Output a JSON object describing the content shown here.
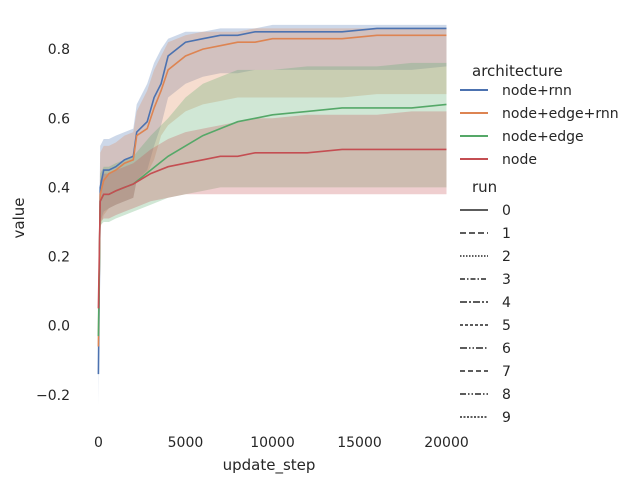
{
  "chart_data": {
    "type": "line",
    "xlabel": "update_step",
    "ylabel": "value",
    "xlim": [
      -600,
      20200
    ],
    "ylim": [
      -0.29,
      0.89
    ],
    "xticks": [
      0,
      5000,
      10000,
      15000,
      20000
    ],
    "xtick_labels": [
      "0",
      "5000",
      "10000",
      "15000",
      "20000"
    ],
    "yticks": [
      -0.2,
      0.0,
      0.2,
      0.4,
      0.6,
      0.8
    ],
    "ytick_labels": [
      "−0.2",
      "0.0",
      "0.2",
      "0.4",
      "0.6",
      "0.8"
    ],
    "grid": false,
    "legend_placement": "right, outside plot",
    "legend": {
      "hue_title": "architecture",
      "style_title": "run",
      "hue_entries": [
        {
          "label": "node+rnn",
          "color": "#4c72b0"
        },
        {
          "label": "node+edge+rnn",
          "color": "#dd8452"
        },
        {
          "label": "node+edge",
          "color": "#55a868"
        },
        {
          "label": "node",
          "color": "#c44e52"
        }
      ],
      "style_entries": [
        {
          "label": "0",
          "dash": ""
        },
        {
          "label": "1",
          "dash": "6,3"
        },
        {
          "label": "2",
          "dash": "1.5,1.5"
        },
        {
          "label": "3",
          "dash": "5,2,1.5,2"
        },
        {
          "label": "4",
          "dash": "7,2,2,2"
        },
        {
          "label": "5",
          "dash": "3,2"
        },
        {
          "label": "6",
          "dash": "7,2,1.5,2,1.5,2"
        },
        {
          "label": "7",
          "dash": "5,3"
        },
        {
          "label": "8",
          "dash": "6,2,1.5,2,1.5,2"
        },
        {
          "label": "9",
          "dash": "2,1.5"
        }
      ]
    },
    "series": [
      {
        "name": "node+rnn",
        "color": "#4c72b0",
        "x": [
          0,
          100,
          300,
          600,
          1000,
          1500,
          2000,
          2200,
          2800,
          3200,
          3600,
          4000,
          5000,
          6000,
          7000,
          8000,
          9000,
          10000,
          12000,
          14000,
          16000,
          18000,
          20000
        ],
        "y": [
          -0.14,
          0.4,
          0.45,
          0.45,
          0.46,
          0.48,
          0.49,
          0.56,
          0.59,
          0.66,
          0.7,
          0.78,
          0.82,
          0.83,
          0.84,
          0.84,
          0.85,
          0.85,
          0.85,
          0.85,
          0.86,
          0.86,
          0.86
        ],
        "band_low": [
          -0.23,
          0.3,
          0.33,
          0.34,
          0.35,
          0.36,
          0.37,
          0.42,
          0.45,
          0.52,
          0.58,
          0.66,
          0.7,
          0.72,
          0.73,
          0.73,
          0.74,
          0.74,
          0.74,
          0.74,
          0.74,
          0.74,
          0.75
        ],
        "band_high": [
          0.1,
          0.52,
          0.54,
          0.54,
          0.55,
          0.56,
          0.57,
          0.64,
          0.7,
          0.76,
          0.8,
          0.83,
          0.85,
          0.85,
          0.86,
          0.86,
          0.86,
          0.87,
          0.87,
          0.87,
          0.87,
          0.87,
          0.87
        ]
      },
      {
        "name": "node+edge+rnn",
        "color": "#dd8452",
        "x": [
          0,
          100,
          300,
          600,
          1000,
          1500,
          2000,
          2200,
          2800,
          3200,
          3600,
          4000,
          5000,
          6000,
          7000,
          8000,
          9000,
          10000,
          12000,
          14000,
          16000,
          18000,
          20000
        ],
        "y": [
          -0.06,
          0.38,
          0.42,
          0.44,
          0.45,
          0.47,
          0.48,
          0.55,
          0.57,
          0.63,
          0.68,
          0.74,
          0.78,
          0.8,
          0.81,
          0.82,
          0.82,
          0.83,
          0.83,
          0.83,
          0.84,
          0.84,
          0.84
        ],
        "band_low": [
          -0.12,
          0.28,
          0.32,
          0.34,
          0.35,
          0.36,
          0.37,
          0.42,
          0.44,
          0.48,
          0.55,
          0.58,
          0.62,
          0.64,
          0.65,
          0.66,
          0.66,
          0.66,
          0.66,
          0.66,
          0.67,
          0.67,
          0.67
        ],
        "band_high": [
          0.08,
          0.5,
          0.52,
          0.52,
          0.53,
          0.55,
          0.56,
          0.62,
          0.68,
          0.74,
          0.78,
          0.82,
          0.84,
          0.85,
          0.85,
          0.85,
          0.86,
          0.86,
          0.86,
          0.86,
          0.86,
          0.86,
          0.86
        ]
      },
      {
        "name": "node+edge",
        "color": "#55a868",
        "x": [
          0,
          100,
          300,
          600,
          1000,
          1500,
          2000,
          3000,
          4000,
          5000,
          6000,
          7000,
          8000,
          9000,
          10000,
          12000,
          14000,
          16000,
          18000,
          20000
        ],
        "y": [
          -0.03,
          0.36,
          0.38,
          0.38,
          0.39,
          0.4,
          0.41,
          0.45,
          0.49,
          0.52,
          0.55,
          0.57,
          0.59,
          0.6,
          0.61,
          0.62,
          0.63,
          0.63,
          0.63,
          0.64
        ],
        "band_low": [
          -0.08,
          0.29,
          0.3,
          0.3,
          0.31,
          0.32,
          0.33,
          0.35,
          0.37,
          0.38,
          0.39,
          0.4,
          0.4,
          0.4,
          0.4,
          0.4,
          0.4,
          0.4,
          0.4,
          0.4
        ],
        "band_high": [
          0.05,
          0.44,
          0.46,
          0.46,
          0.47,
          0.48,
          0.49,
          0.55,
          0.6,
          0.66,
          0.7,
          0.72,
          0.74,
          0.74,
          0.74,
          0.75,
          0.75,
          0.75,
          0.76,
          0.76
        ]
      },
      {
        "name": "node",
        "color": "#c44e52",
        "x": [
          0,
          100,
          300,
          600,
          1000,
          1500,
          2000,
          3000,
          4000,
          5000,
          6000,
          7000,
          8000,
          9000,
          10000,
          12000,
          14000,
          16000,
          18000,
          20000
        ],
        "y": [
          0.05,
          0.36,
          0.38,
          0.38,
          0.39,
          0.4,
          0.41,
          0.44,
          0.46,
          0.47,
          0.48,
          0.49,
          0.49,
          0.5,
          0.5,
          0.5,
          0.51,
          0.51,
          0.51,
          0.51
        ],
        "band_low": [
          0.0,
          0.3,
          0.31,
          0.31,
          0.32,
          0.33,
          0.34,
          0.36,
          0.37,
          0.38,
          0.38,
          0.38,
          0.38,
          0.38,
          0.38,
          0.38,
          0.38,
          0.38,
          0.38,
          0.38
        ],
        "band_high": [
          0.1,
          0.42,
          0.44,
          0.44,
          0.45,
          0.46,
          0.47,
          0.51,
          0.54,
          0.56,
          0.57,
          0.58,
          0.59,
          0.6,
          0.6,
          0.61,
          0.61,
          0.61,
          0.62,
          0.62
        ]
      }
    ]
  }
}
